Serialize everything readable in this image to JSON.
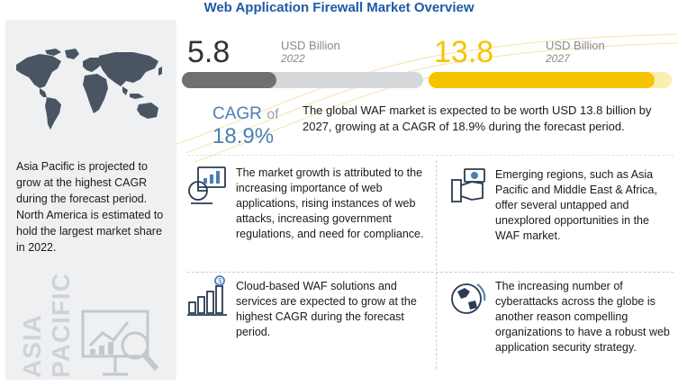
{
  "title": "Web Application Firewall Market Overview",
  "left_panel": {
    "text": "Asia Pacific is projected to grow at the highest CAGR during the forecast period. North America is estimated to hold the largest market share in 2022.",
    "vertical_word_1": "ASIA",
    "vertical_word_2": "PACIFIC"
  },
  "stats": {
    "current": {
      "value": "5.8",
      "unit": "USD Billion",
      "year": "2022",
      "bar_level": 0.39,
      "color": "#707070"
    },
    "forecast": {
      "value": "13.8",
      "unit": "USD Billion",
      "year": "2027",
      "bar_level": 0.93,
      "color": "#f5c400"
    }
  },
  "cagr": {
    "label": "CAGR",
    "of": "of",
    "value": "18.9%"
  },
  "headline": "The global WAF market is expected to be worth USD 13.8 billion by 2027, growing at a CAGR of 18.9% during the forecast period.",
  "blocks": [
    {
      "icon": "analytics-chart-icon",
      "text": "The market growth is attributed to the increasing importance of web applications, rising instances of web attacks, increasing government regulations, and need for compliance."
    },
    {
      "icon": "money-hand-icon",
      "text": "Emerging regions, such as Asia Pacific and Middle East & Africa, offer several untapped and unexplored opportunities in the WAF market."
    },
    {
      "icon": "growth-bars-dollar-icon",
      "text": "Cloud-based WAF solutions and services are expected to grow at the highest CAGR during the forecast period."
    },
    {
      "icon": "globe-icon",
      "text": "The increasing number of cyberattacks across the globe is another reason compelling organizations to have a robust web application security strategy."
    }
  ],
  "colors": {
    "title": "#1f5aa6",
    "cagr": "#4a7fb5",
    "gray_bar": "#707070",
    "yellow_bar": "#f5c400"
  }
}
